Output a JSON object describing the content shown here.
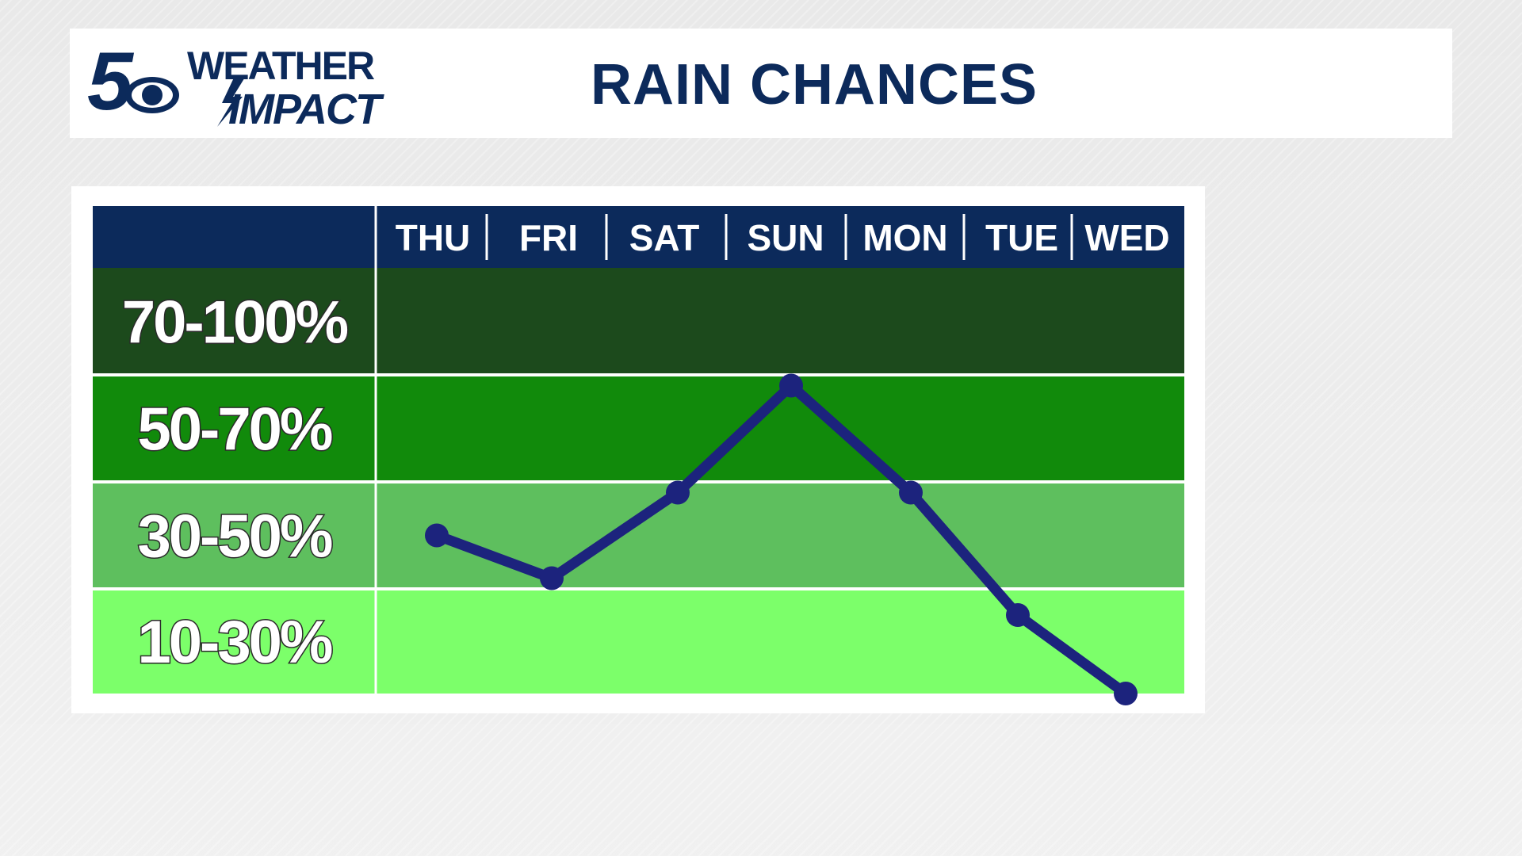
{
  "header": {
    "logo": {
      "channel": "5",
      "line1": "WEATHER",
      "line2": "IMPACT",
      "icon": "cbs-eye-icon"
    },
    "title": "RAIN CHANCES"
  },
  "colors": {
    "navy": "#0c2a5b",
    "band_70_100": "#1c4a1c",
    "band_50_70": "#118a0b",
    "band_30_50": "#5ebf5e",
    "band_10_30": "#7cff6a",
    "line": "#1c237d"
  },
  "chart_data": {
    "type": "line",
    "categories": [
      "THU",
      "FRI",
      "SAT",
      "SUN",
      "MON",
      "TUE",
      "WED"
    ],
    "y_bands": [
      {
        "label": "70-100%",
        "range": [
          70,
          100
        ]
      },
      {
        "label": "50-70%",
        "range": [
          50,
          70
        ]
      },
      {
        "label": "30-50%",
        "range": [
          30,
          50
        ]
      },
      {
        "label": "10-30%",
        "range": [
          10,
          30
        ]
      }
    ],
    "series": [
      {
        "values": [
          40,
          32,
          48,
          68,
          48,
          25,
          10
        ]
      }
    ],
    "grid": true
  }
}
